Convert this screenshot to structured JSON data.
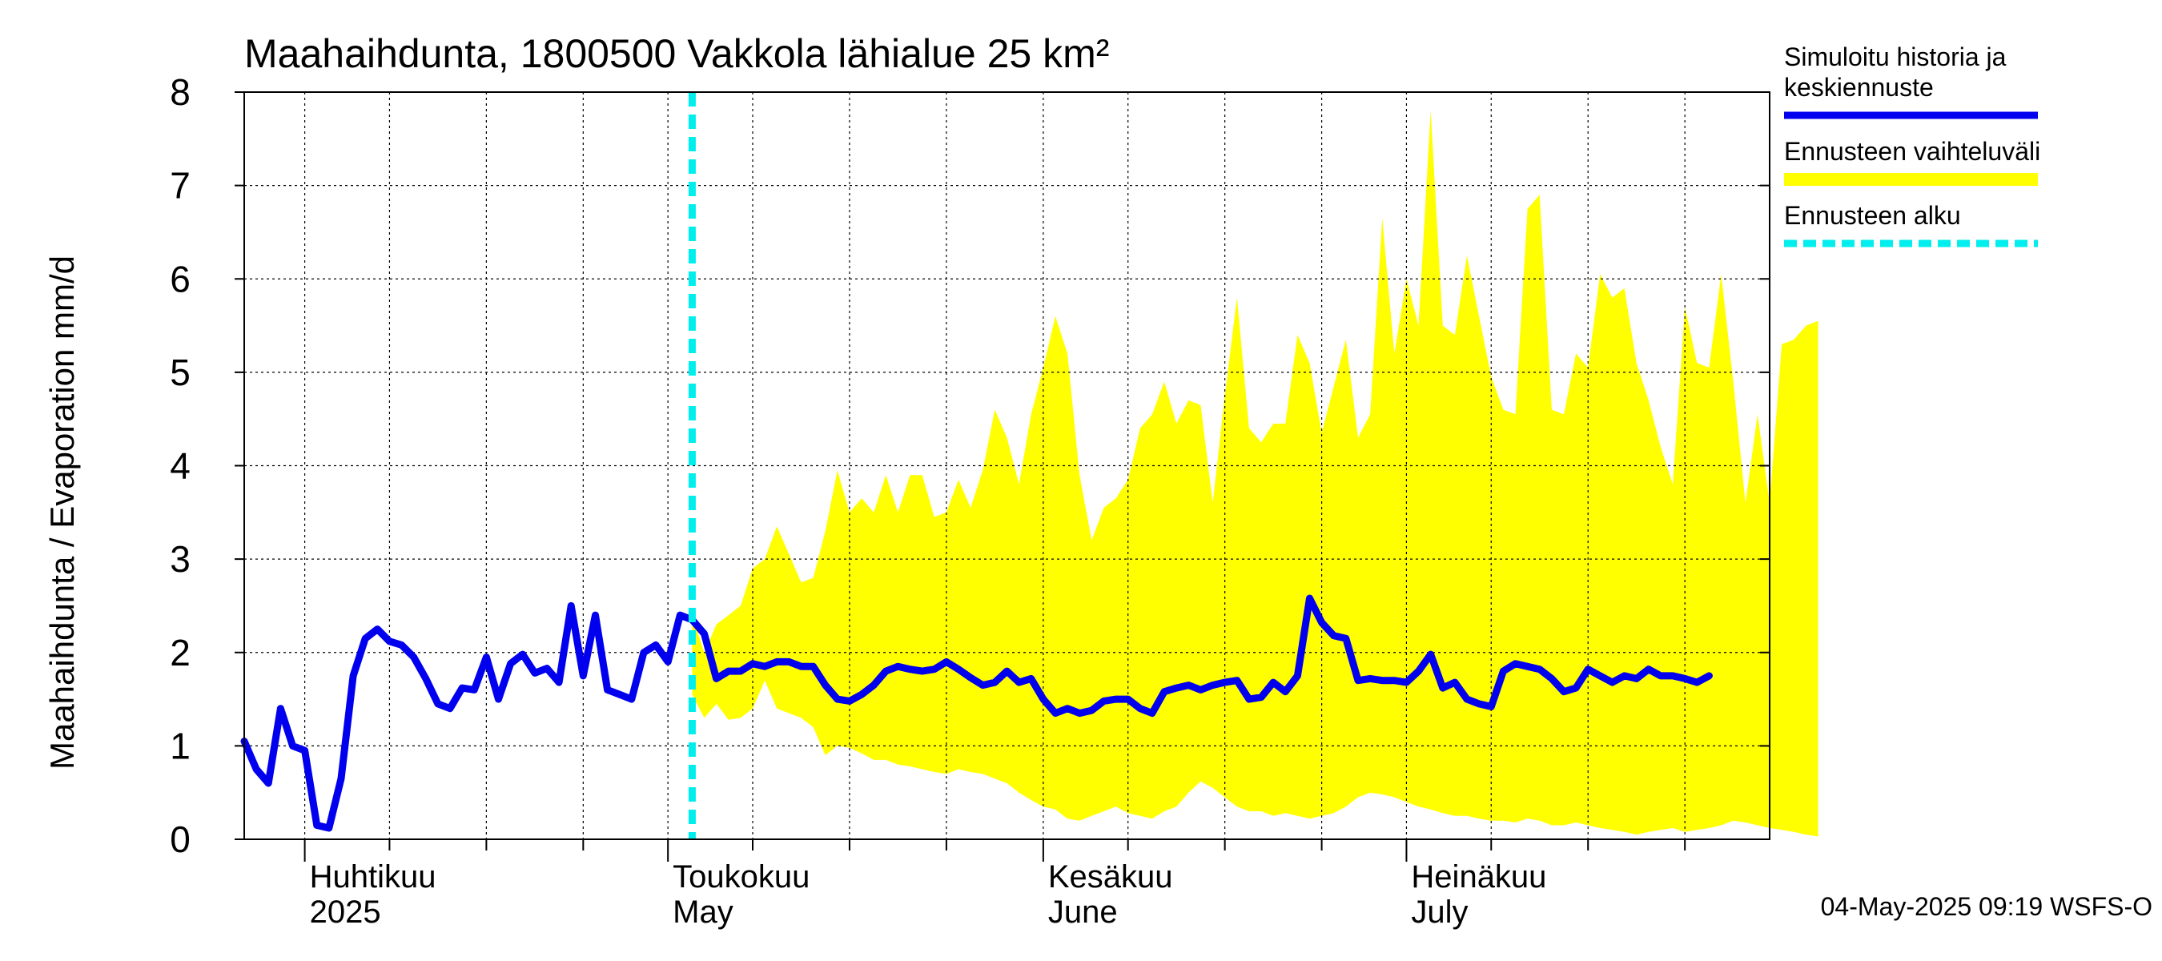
{
  "chart_data": {
    "type": "area",
    "title": "Maahaihdunta, 1800500 Vakkola lähialue 25 km²",
    "ylabel": "Maahaihdunta / Evaporation   mm/d",
    "xlabel": "",
    "ylim": [
      0,
      8
    ],
    "yticks": [
      0,
      1,
      2,
      3,
      4,
      5,
      6,
      7,
      8
    ],
    "grid": true,
    "x_range": [
      "2025-03-27",
      "2025-07-31"
    ],
    "month_labels": [
      {
        "date": "2025-04-01",
        "line1": "Huhtikuu",
        "line2": "2025"
      },
      {
        "date": "2025-05-01",
        "line1": "Toukokuu",
        "line2": "May"
      },
      {
        "date": "2025-06-01",
        "line1": "Kesäkuu",
        "line2": "June"
      },
      {
        "date": "2025-07-01",
        "line1": "Heinäkuu",
        "line2": "July"
      }
    ],
    "forecast_start": "2025-05-03",
    "legend_position": "right",
    "legend": [
      {
        "label_line1": "Simuloitu historia ja",
        "label_line2": "keskiennuste",
        "color": "#0000ee",
        "style": "solid"
      },
      {
        "label_line1": "Ennusteen vaihteluväli",
        "label_line2": "",
        "color": "#ffff00",
        "style": "solid"
      },
      {
        "label_line1": "Ennusteen alku",
        "label_line2": "",
        "color": "#00eeee",
        "style": "dashed"
      }
    ],
    "colors": {
      "history": "#0000ee",
      "band": "#ffff00",
      "forecast_start": "#00eeee"
    },
    "series": [
      {
        "name": "Simuloitu historia ja keskiennuste",
        "start_date": "2025-03-27",
        "values": [
          1.05,
          0.75,
          0.6,
          1.4,
          1.0,
          0.95,
          0.15,
          0.12,
          0.65,
          1.75,
          2.15,
          2.25,
          2.12,
          2.08,
          1.95,
          1.72,
          1.45,
          1.4,
          1.62,
          1.6,
          1.95,
          1.5,
          1.88,
          1.98,
          1.78,
          1.83,
          1.68,
          2.5,
          1.75,
          2.4,
          1.6,
          1.55,
          1.5,
          2.0,
          2.08,
          1.9,
          2.4,
          2.35,
          2.2,
          1.72,
          1.8,
          1.8,
          1.88,
          1.85,
          1.9,
          1.9,
          1.85,
          1.85,
          1.65,
          1.5,
          1.48,
          1.55,
          1.65,
          1.8,
          1.85,
          1.82,
          1.8,
          1.82,
          1.9,
          1.82,
          1.73,
          1.65,
          1.68,
          1.8,
          1.68,
          1.72,
          1.5,
          1.35,
          1.4,
          1.35,
          1.38,
          1.48,
          1.5,
          1.5,
          1.4,
          1.35,
          1.58,
          1.62,
          1.65,
          1.6,
          1.65,
          1.68,
          1.7,
          1.5,
          1.52,
          1.68,
          1.58,
          1.75,
          2.58,
          2.32,
          2.18,
          2.15,
          1.7,
          1.72,
          1.7,
          1.7,
          1.68,
          1.8,
          1.98,
          1.62,
          1.68,
          1.5,
          1.45,
          1.42,
          1.8,
          1.88,
          1.85,
          1.82,
          1.72,
          1.58,
          1.62,
          1.82,
          1.75,
          1.68,
          1.75,
          1.72,
          1.82,
          1.75,
          1.75,
          1.72,
          1.68,
          1.75
        ]
      },
      {
        "name": "Ennusteen vaihteluväli (ylä)",
        "start_date": "2025-05-03",
        "values": [
          2.4,
          2.0,
          2.3,
          2.4,
          2.5,
          2.9,
          3.0,
          3.35,
          3.05,
          2.75,
          2.8,
          3.3,
          3.95,
          3.5,
          3.65,
          3.5,
          3.9,
          3.5,
          3.9,
          3.9,
          3.45,
          3.5,
          3.85,
          3.55,
          3.95,
          4.6,
          4.3,
          3.8,
          4.55,
          5.05,
          5.6,
          5.2,
          3.9,
          3.2,
          3.55,
          3.65,
          3.85,
          4.4,
          4.55,
          4.9,
          4.45,
          4.7,
          4.65,
          3.6,
          4.75,
          5.8,
          4.4,
          4.25,
          4.45,
          4.45,
          5.4,
          5.1,
          4.35,
          4.85,
          5.35,
          4.3,
          4.55,
          6.65,
          5.2,
          6.0,
          5.5,
          7.8,
          5.5,
          5.4,
          6.25,
          5.6,
          4.95,
          4.6,
          4.55,
          6.75,
          6.9,
          4.6,
          4.55,
          5.2,
          5.05,
          6.05,
          5.8,
          5.9,
          5.1,
          4.7,
          4.2,
          3.8,
          5.7,
          5.1,
          5.05,
          6.05,
          4.9,
          3.6,
          4.55,
          3.6,
          5.3,
          5.35,
          5.5,
          5.55
        ]
      },
      {
        "name": "Ennusteen vaihteluväli (ala)",
        "start_date": "2025-05-03",
        "values": [
          1.55,
          1.3,
          1.45,
          1.28,
          1.3,
          1.4,
          1.7,
          1.4,
          1.35,
          1.3,
          1.2,
          0.9,
          1.0,
          0.98,
          0.92,
          0.85,
          0.85,
          0.8,
          0.78,
          0.75,
          0.72,
          0.7,
          0.75,
          0.72,
          0.7,
          0.65,
          0.6,
          0.5,
          0.42,
          0.35,
          0.32,
          0.22,
          0.2,
          0.25,
          0.3,
          0.35,
          0.28,
          0.25,
          0.22,
          0.3,
          0.35,
          0.5,
          0.62,
          0.55,
          0.45,
          0.35,
          0.3,
          0.3,
          0.25,
          0.28,
          0.25,
          0.22,
          0.25,
          0.28,
          0.35,
          0.45,
          0.5,
          0.48,
          0.45,
          0.4,
          0.35,
          0.32,
          0.28,
          0.25,
          0.25,
          0.22,
          0.2,
          0.2,
          0.18,
          0.22,
          0.2,
          0.15,
          0.15,
          0.18,
          0.15,
          0.12,
          0.1,
          0.08,
          0.05,
          0.08,
          0.1,
          0.12,
          0.08,
          0.1,
          0.12,
          0.15,
          0.2,
          0.18,
          0.15,
          0.12,
          0.1,
          0.08,
          0.05,
          0.03
        ]
      }
    ]
  },
  "footer": "04-May-2025 09:19 WSFS-O"
}
